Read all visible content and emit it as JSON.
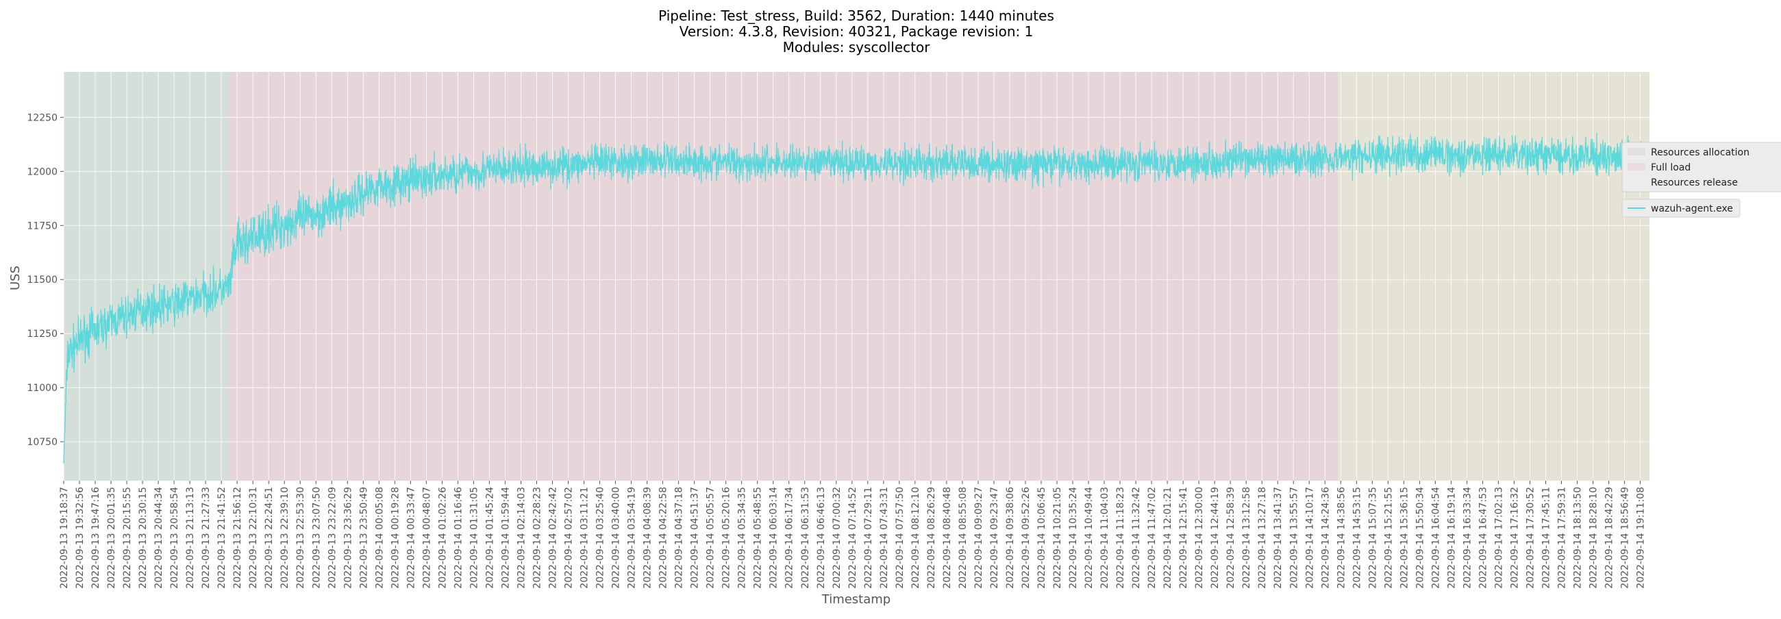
{
  "title_lines": [
    "Pipeline: Test_stress, Build: 3562, Duration: 1440 minutes",
    "Version: 4.3.8, Revision: 40321, Package revision: 1",
    "Modules: syscollector"
  ],
  "colors": {
    "series": "#5ad8dc",
    "phase_allocation": "#d5dfd9",
    "phase_full_load": "#e6d6da",
    "phase_release": "#e4e3d6",
    "grid": "#ffffff",
    "axes_bg": "#e5e5e5"
  },
  "chart_data": {
    "type": "line",
    "xlabel": "Timestamp",
    "ylabel": "USS",
    "ylim": [
      10570,
      12460
    ],
    "yticks": [
      10750,
      11000,
      11250,
      11500,
      11750,
      12000,
      12250
    ],
    "grid": true,
    "legend_placement": "right outside",
    "x_start": "2022-09-13 19:18:37",
    "x_end": "2022-09-14 19:18:37",
    "xtick_interval_seconds": 859,
    "xtick_labels": [
      "2022-09-13 19:18:37",
      "2022-09-13 19:32:56",
      "2022-09-13 19:47:16",
      "2022-09-13 20:01:35",
      "2022-09-13 20:15:55",
      "2022-09-13 20:30:15",
      "2022-09-13 20:44:34",
      "2022-09-13 20:58:54",
      "2022-09-13 21:13:13",
      "2022-09-13 21:27:33",
      "2022-09-13 21:41:52",
      "2022-09-13 21:56:12",
      "2022-09-13 22:10:31",
      "2022-09-13 22:24:51",
      "2022-09-13 22:39:10",
      "2022-09-13 22:53:30",
      "2022-09-13 23:07:50",
      "2022-09-13 23:22:09",
      "2022-09-13 23:36:29",
      "2022-09-13 23:50:49",
      "2022-09-14 00:05:08",
      "2022-09-14 00:19:28",
      "2022-09-14 00:33:47",
      "2022-09-14 00:48:07",
      "2022-09-14 01:02:26",
      "2022-09-14 01:16:46",
      "2022-09-14 01:31:05",
      "2022-09-14 01:45:24",
      "2022-09-14 01:59:44",
      "2022-09-14 02:14:03",
      "2022-09-14 02:28:23",
      "2022-09-14 02:42:42",
      "2022-09-14 02:57:02",
      "2022-09-14 03:11:21",
      "2022-09-14 03:25:40",
      "2022-09-14 03:40:00",
      "2022-09-14 03:54:19",
      "2022-09-14 04:08:39",
      "2022-09-14 04:22:58",
      "2022-09-14 04:37:18",
      "2022-09-14 04:51:37",
      "2022-09-14 05:05:57",
      "2022-09-14 05:20:16",
      "2022-09-14 05:34:35",
      "2022-09-14 05:48:55",
      "2022-09-14 06:03:14",
      "2022-09-14 06:17:34",
      "2022-09-14 06:31:53",
      "2022-09-14 06:46:13",
      "2022-09-14 07:00:32",
      "2022-09-14 07:14:52",
      "2022-09-14 07:29:11",
      "2022-09-14 07:43:31",
      "2022-09-14 07:57:50",
      "2022-09-14 08:12:10",
      "2022-09-14 08:26:29",
      "2022-09-14 08:40:48",
      "2022-09-14 08:55:08",
      "2022-09-14 09:09:27",
      "2022-09-14 09:23:47",
      "2022-09-14 09:38:06",
      "2022-09-14 09:52:26",
      "2022-09-14 10:06:45",
      "2022-09-14 10:21:05",
      "2022-09-14 10:35:24",
      "2022-09-14 10:49:44",
      "2022-09-14 11:04:03",
      "2022-09-14 11:18:23",
      "2022-09-14 11:32:42",
      "2022-09-14 11:47:02",
      "2022-09-14 12:01:21",
      "2022-09-14 12:15:41",
      "2022-09-14 12:30:00",
      "2022-09-14 12:44:19",
      "2022-09-14 12:58:39",
      "2022-09-14 13:12:58",
      "2022-09-14 13:27:18",
      "2022-09-14 13:41:37",
      "2022-09-14 13:55:57",
      "2022-09-14 14:10:17",
      "2022-09-14 14:24:36",
      "2022-09-14 14:38:56",
      "2022-09-14 14:53:15",
      "2022-09-14 15:07:35",
      "2022-09-14 15:21:55",
      "2022-09-14 15:36:15",
      "2022-09-14 15:50:34",
      "2022-09-14 16:04:54",
      "2022-09-14 16:19:14",
      "2022-09-14 16:33:34",
      "2022-09-14 16:47:53",
      "2022-09-14 17:02:13",
      "2022-09-14 17:16:32",
      "2022-09-14 17:30:52",
      "2022-09-14 17:45:11",
      "2022-09-14 17:59:31",
      "2022-09-14 18:13:50",
      "2022-09-14 18:28:10",
      "2022-09-14 18:42:29",
      "2022-09-14 18:56:49",
      "2022-09-14 19:11:08"
    ],
    "phases": [
      {
        "name": "Resources allocation",
        "start": "2022-09-13 19:18:37",
        "end": "2022-09-13 21:48:30",
        "color_key": "phase_allocation"
      },
      {
        "name": "Full load",
        "start": "2022-09-13 21:48:30",
        "end": "2022-09-14 14:35:40",
        "color_key": "phase_full_load"
      },
      {
        "name": "Resources release",
        "start": "2022-09-14 14:35:40",
        "end": "2022-09-14 19:18:37",
        "color_key": "phase_release"
      }
    ],
    "series": [
      {
        "name": "wazuh-agent.exe",
        "x": [
          "2022-09-13 19:18:37",
          "2022-09-13 19:22:00",
          "2022-09-13 19:35:00",
          "2022-09-13 20:00:00",
          "2022-09-13 20:30:00",
          "2022-09-13 21:00:00",
          "2022-09-13 21:30:00",
          "2022-09-13 21:49:00",
          "2022-09-13 21:55:00",
          "2022-09-13 22:30:00",
          "2022-09-13 23:00:00",
          "2022-09-13 23:30:00",
          "2022-09-14 00:00:00",
          "2022-09-14 00:30:00",
          "2022-09-14 01:00:00",
          "2022-09-14 01:30:00",
          "2022-09-14 02:00:00",
          "2022-09-14 03:00:00",
          "2022-09-14 04:00:00",
          "2022-09-14 06:00:00",
          "2022-09-14 08:00:00",
          "2022-09-14 10:00:00",
          "2022-09-14 12:00:00",
          "2022-09-14 14:00:00",
          "2022-09-14 16:00:00",
          "2022-09-14 18:00:00",
          "2022-09-14 19:18:37"
        ],
        "y": [
          10650,
          11150,
          11230,
          11300,
          11360,
          11390,
          11440,
          11460,
          11650,
          11740,
          11790,
          11840,
          11930,
          11950,
          11980,
          12000,
          12010,
          12030,
          12050,
          12040,
          12040,
          12030,
          12040,
          12060,
          12080,
          12070,
          12060
        ],
        "band_y": [
          0,
          150,
          150,
          140,
          140,
          140,
          140,
          140,
          170,
          160,
          160,
          150,
          140,
          140,
          140,
          130,
          130,
          120,
          120,
          120,
          120,
          120,
          120,
          120,
          120,
          120,
          120
        ]
      }
    ]
  },
  "legend": {
    "phases": [
      "Resources allocation",
      "Full load",
      "Resources release"
    ],
    "series": [
      "wazuh-agent.exe"
    ]
  }
}
